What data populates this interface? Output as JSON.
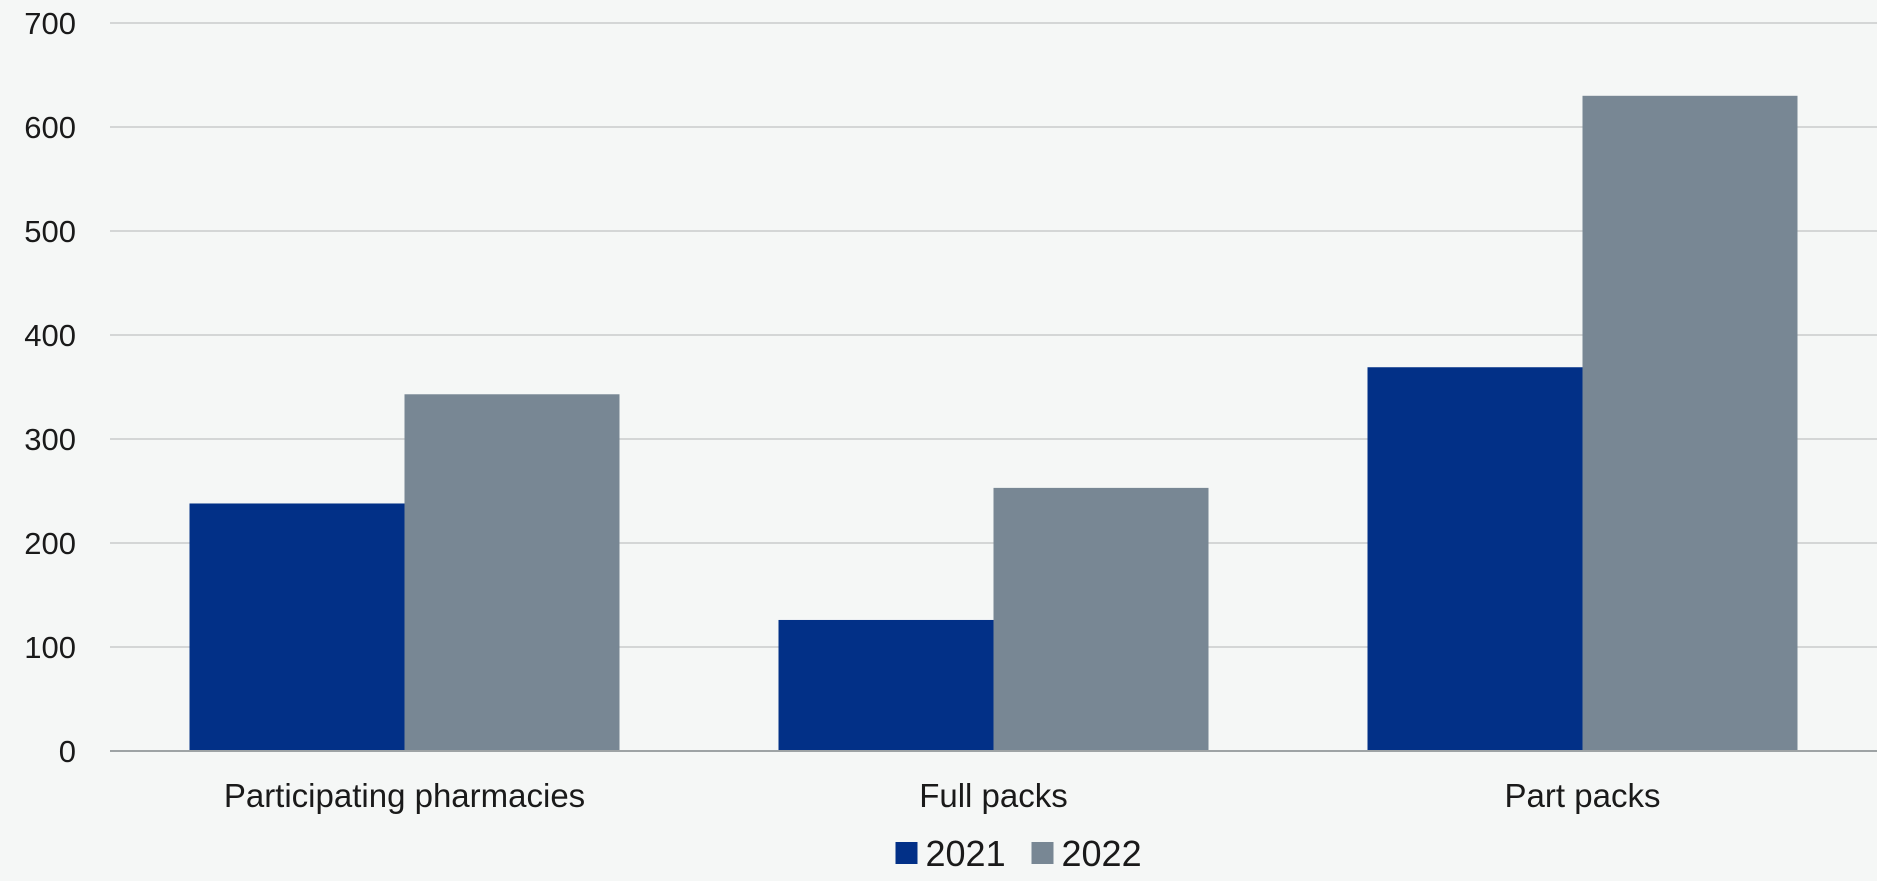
{
  "chart_data": {
    "type": "bar",
    "categories": [
      "Participating pharmacies",
      "Full packs",
      "Part packs"
    ],
    "series": [
      {
        "name": "2021",
        "values": [
          238,
          126,
          369
        ],
        "color": "#023087"
      },
      {
        "name": "2022",
        "values": [
          343,
          253,
          630
        ],
        "color": "#788794"
      }
    ],
    "ylim": [
      0,
      700
    ],
    "yticks": [
      0,
      100,
      200,
      300,
      400,
      500,
      600,
      700
    ],
    "grid": true,
    "legend_position": "bottom-center",
    "title": "",
    "xlabel": "",
    "ylabel": ""
  }
}
